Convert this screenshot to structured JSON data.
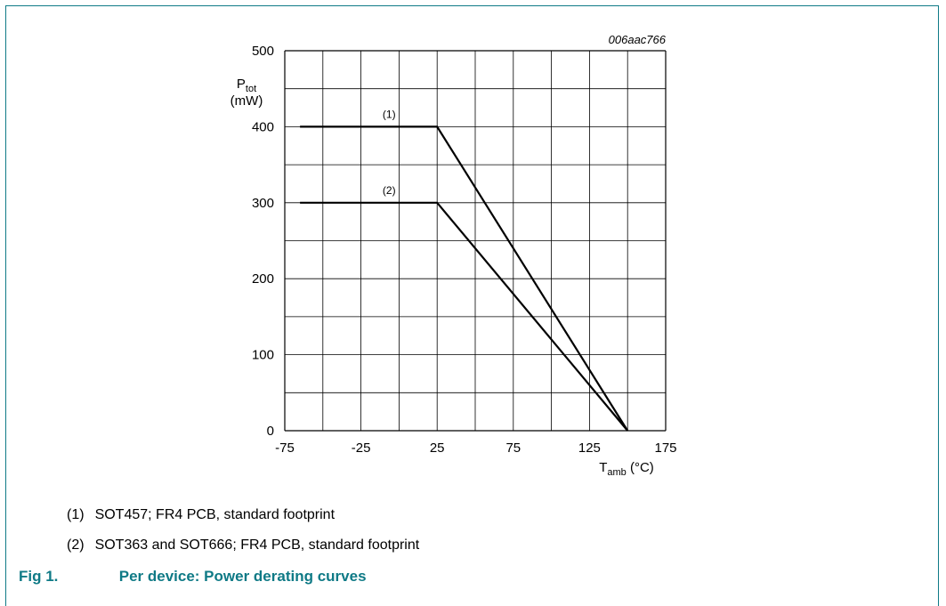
{
  "chart_data": {
    "type": "line",
    "figure_code": "006aac766",
    "ylabel": {
      "main": "P",
      "sub": "tot",
      "unit": "(mW)"
    },
    "xlabel": {
      "main": "T",
      "sub": "amb",
      "unit": " (°C)"
    },
    "xlim": [
      -75,
      175
    ],
    "ylim": [
      0,
      500
    ],
    "x_ticks": [
      "-75",
      "-25",
      "25",
      "75",
      "125",
      "175"
    ],
    "y_ticks": [
      "0",
      "100",
      "200",
      "300",
      "400",
      "500"
    ],
    "grid": true,
    "series": [
      {
        "name": "(1)",
        "x": [
          -65,
          25,
          150
        ],
        "y": [
          400,
          400,
          0
        ]
      },
      {
        "name": "(2)",
        "x": [
          -65,
          25,
          150
        ],
        "y": [
          300,
          300,
          0
        ]
      }
    ]
  },
  "notes": [
    {
      "marker": "(1)",
      "text": "SOT457; FR4 PCB, standard footprint"
    },
    {
      "marker": "(2)",
      "text": "SOT363 and SOT666; FR4 PCB, standard footprint"
    }
  ],
  "caption": {
    "number": "Fig 1.",
    "title": "Per device: Power derating curves"
  },
  "colors": {
    "accent": "#0f7a86",
    "line": "#000000",
    "grid": "#000000"
  }
}
